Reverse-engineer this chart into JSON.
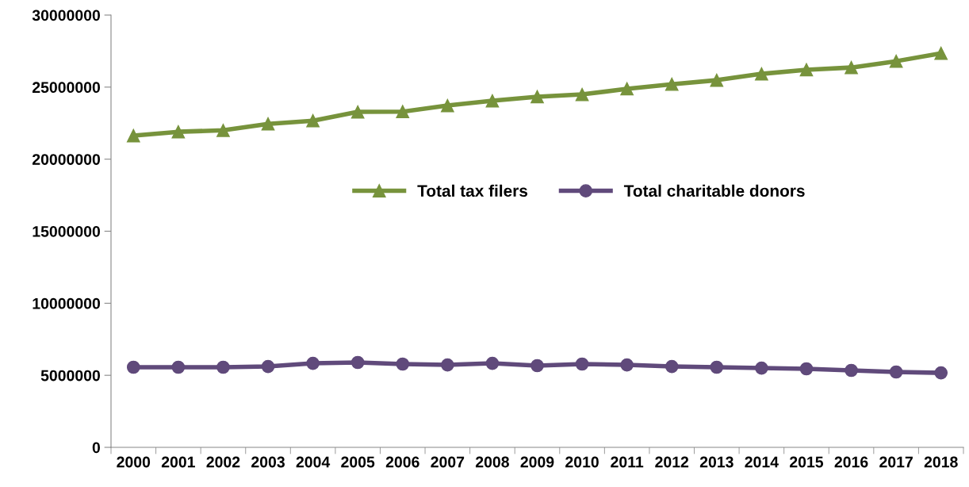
{
  "chart_data": {
    "type": "line",
    "categories": [
      "2000",
      "2001",
      "2002",
      "2003",
      "2004",
      "2005",
      "2006",
      "2007",
      "2008",
      "2009",
      "2010",
      "2011",
      "2012",
      "2013",
      "2014",
      "2015",
      "2016",
      "2017",
      "2018"
    ],
    "series": [
      {
        "name": "Total tax filers",
        "color": "#77933c",
        "marker": "triangle",
        "values": [
          21630000,
          21900000,
          22000000,
          22450000,
          22670000,
          23280000,
          23300000,
          23720000,
          24050000,
          24330000,
          24490000,
          24880000,
          25200000,
          25480000,
          25920000,
          26200000,
          26360000,
          26800000,
          27350000
        ]
      },
      {
        "name": "Total charitable donors",
        "color": "#604a7b",
        "marker": "circle",
        "values": [
          5560000,
          5560000,
          5560000,
          5610000,
          5830000,
          5890000,
          5780000,
          5720000,
          5830000,
          5670000,
          5780000,
          5720000,
          5610000,
          5560000,
          5500000,
          5450000,
          5340000,
          5230000,
          5170000
        ]
      }
    ],
    "ylim": [
      0,
      30000000
    ],
    "yticks": [
      0,
      5000000,
      10000000,
      15000000,
      20000000,
      25000000,
      30000000
    ],
    "grid": false,
    "legend": "center",
    "line_style": "solid"
  }
}
